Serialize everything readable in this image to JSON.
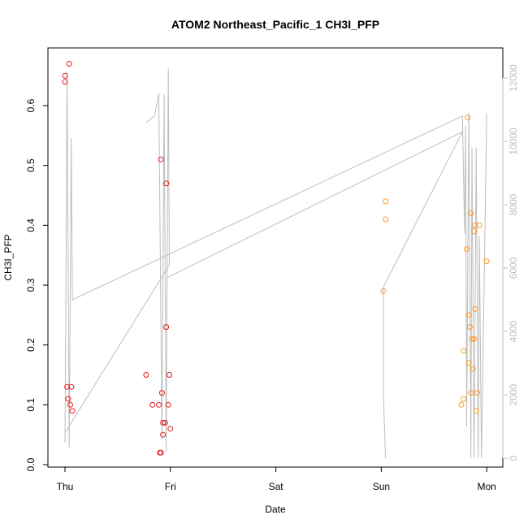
{
  "chart_data": {
    "type": "scatter",
    "title": "ATOM2 Northeast_Pacific_1 CH3I_PFP",
    "xlabel": "Date",
    "ylabel": "CH3I_PFP",
    "x_ticks": [
      {
        "label": "Thu",
        "value": 0
      },
      {
        "label": "Fri",
        "value": 1
      },
      {
        "label": "Sat",
        "value": 2
      },
      {
        "label": "Sun",
        "value": 3
      },
      {
        "label": "Mon",
        "value": 4
      }
    ],
    "x_range_days": [
      -0.2,
      4.1
    ],
    "ylim": [
      0,
      0.68
    ],
    "y_ticks": [
      0.0,
      0.1,
      0.2,
      0.3,
      0.4,
      0.5,
      0.6
    ],
    "y2lim": [
      -250,
      12700
    ],
    "y2_ticks": [
      0,
      2000,
      4000,
      6000,
      8000,
      10000,
      12000
    ],
    "grid": false,
    "colors": {
      "series1": "#e41a1c",
      "series2": "#ff9a1f",
      "altitude_line": "#bdbdbd",
      "axis": "#000000",
      "right_axis": "#bdbdbd"
    },
    "series": [
      {
        "color": "red",
        "points": [
          {
            "x": 0.0,
            "y": 0.65
          },
          {
            "x": 0.0,
            "y": 0.64
          },
          {
            "x": 0.04,
            "y": 0.67
          },
          {
            "x": 0.02,
            "y": 0.13
          },
          {
            "x": 0.06,
            "y": 0.13
          },
          {
            "x": 0.03,
            "y": 0.11
          },
          {
            "x": 0.05,
            "y": 0.1
          },
          {
            "x": 0.07,
            "y": 0.09
          },
          {
            "x": 0.77,
            "y": 0.15
          },
          {
            "x": 0.83,
            "y": 0.1
          },
          {
            "x": 0.89,
            "y": 0.1
          },
          {
            "x": 0.92,
            "y": 0.12
          },
          {
            "x": 0.91,
            "y": 0.51
          },
          {
            "x": 0.96,
            "y": 0.47
          },
          {
            "x": 0.93,
            "y": 0.07
          },
          {
            "x": 0.95,
            "y": 0.07
          },
          {
            "x": 0.93,
            "y": 0.05
          },
          {
            "x": 0.91,
            "y": 0.02
          },
          {
            "x": 0.9,
            "y": 0.02
          },
          {
            "x": 0.96,
            "y": 0.23
          },
          {
            "x": 0.99,
            "y": 0.15
          },
          {
            "x": 0.98,
            "y": 0.1
          },
          {
            "x": 1.0,
            "y": 0.06
          }
        ]
      },
      {
        "color": "orange",
        "points": [
          {
            "x": 3.04,
            "y": 0.44
          },
          {
            "x": 3.04,
            "y": 0.41
          },
          {
            "x": 3.02,
            "y": 0.29
          },
          {
            "x": 3.82,
            "y": 0.58
          },
          {
            "x": 3.81,
            "y": 0.36
          },
          {
            "x": 3.85,
            "y": 0.42
          },
          {
            "x": 3.89,
            "y": 0.4
          },
          {
            "x": 3.88,
            "y": 0.39
          },
          {
            "x": 3.93,
            "y": 0.4
          },
          {
            "x": 4.0,
            "y": 0.34
          },
          {
            "x": 3.89,
            "y": 0.26
          },
          {
            "x": 3.83,
            "y": 0.25
          },
          {
            "x": 3.84,
            "y": 0.23
          },
          {
            "x": 3.86,
            "y": 0.21
          },
          {
            "x": 3.88,
            "y": 0.21
          },
          {
            "x": 3.78,
            "y": 0.19
          },
          {
            "x": 3.83,
            "y": 0.17
          },
          {
            "x": 3.87,
            "y": 0.16
          },
          {
            "x": 3.85,
            "y": 0.12
          },
          {
            "x": 3.91,
            "y": 0.12
          },
          {
            "x": 3.78,
            "y": 0.11
          },
          {
            "x": 3.76,
            "y": 0.1
          },
          {
            "x": 3.9,
            "y": 0.09
          }
        ]
      }
    ],
    "altitude_line": [
      [
        0.0,
        500
      ],
      [
        0.02,
        12200
      ],
      [
        0.04,
        300
      ],
      [
        0.06,
        10100
      ],
      [
        0.07,
        5000
      ],
      [
        3.77,
        10800
      ],
      [
        3.79,
        7100
      ],
      [
        3.8,
        10500
      ],
      [
        3.81,
        1000
      ],
      [
        3.83,
        10900
      ],
      [
        3.85,
        0
      ],
      [
        3.86,
        9800
      ],
      [
        3.88,
        0
      ],
      [
        3.9,
        9800
      ],
      [
        3.92,
        0
      ],
      [
        3.93,
        7000
      ],
      [
        3.95,
        0
      ],
      [
        4.0,
        10900
      ]
    ],
    "altitude_line_2": [
      [
        0.0,
        800
      ],
      [
        0.99,
        6100
      ],
      [
        0.98,
        12300
      ],
      [
        0.96,
        200
      ],
      [
        0.94,
        11500
      ],
      [
        0.92,
        600
      ],
      [
        0.89,
        11500
      ],
      [
        0.85,
        10800
      ],
      [
        0.77,
        10600
      ]
    ],
    "altitude_line_3": [
      [
        0.97,
        5700
      ],
      [
        3.77,
        10300
      ],
      [
        3.02,
        5400
      ],
      [
        3.02,
        2000
      ],
      [
        3.04,
        0
      ]
    ]
  }
}
